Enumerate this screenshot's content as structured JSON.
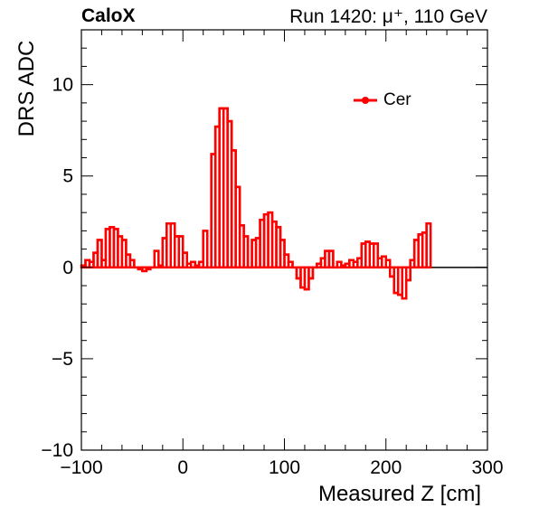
{
  "header": {
    "experiment": "CaloX",
    "run_info": "Run 1420:   μ⁺, 110 GeV"
  },
  "chart_data": {
    "type": "line",
    "style": "step-histogram",
    "xlabel": "Measured Z [cm]",
    "ylabel": "DRS ADC",
    "xlim": [
      -100,
      300
    ],
    "ylim": [
      -10,
      13
    ],
    "x_ticks": [
      -100,
      0,
      100,
      200,
      300
    ],
    "x_tick_labels": [
      "−100",
      "0",
      "100",
      "200",
      "300"
    ],
    "y_ticks": [
      -10,
      -5,
      0,
      5,
      10
    ],
    "y_tick_labels": [
      "−10",
      "−5",
      "0",
      "5",
      "10"
    ],
    "reference_line_y": 0,
    "legend_placement": "top-right",
    "grid": false,
    "series": [
      {
        "name": "Cer",
        "color": "#ff0000",
        "bin_width": 4,
        "bin_edges_start": -100,
        "values": [
          0.1,
          0.4,
          0.3,
          0.8,
          1.5,
          0.4,
          2.1,
          2.2,
          2.1,
          1.7,
          1.5,
          0.7,
          0.4,
          0.0,
          -0.1,
          -0.2,
          -0.1,
          0.0,
          0.9,
          0.1,
          1.6,
          2.4,
          2.4,
          1.7,
          1.7,
          0.8,
          0.2,
          0.3,
          0.1,
          0.3,
          2.0,
          0.0,
          6.2,
          7.7,
          8.7,
          8.7,
          8.0,
          6.4,
          4.4,
          2.3,
          1.7,
          0.0,
          1.5,
          1.6,
          2.6,
          2.9,
          3.0,
          2.5,
          2.2,
          1.5,
          0.7,
          0.3,
          0.0,
          -0.6,
          -1.1,
          -1.2,
          -0.6,
          0.0,
          0.2,
          0.5,
          0.9,
          0.9,
          0.0,
          0.3,
          0.1,
          0.2,
          0.4,
          0.3,
          0.5,
          1.3,
          1.4,
          1.3,
          1.3,
          0.5,
          0.6,
          0.4,
          -0.5,
          -1.4,
          -1.5,
          -1.7,
          -0.7,
          0.4,
          1.5,
          1.8,
          1.9,
          2.4
        ]
      }
    ]
  }
}
